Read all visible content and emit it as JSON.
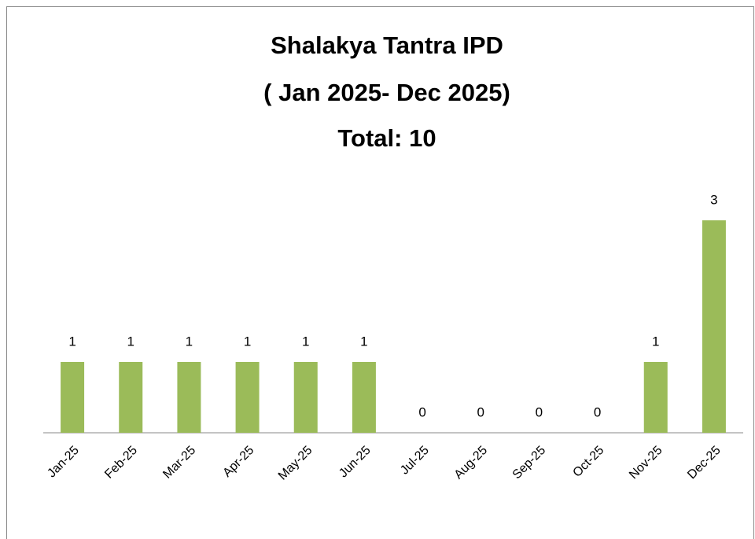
{
  "chart_data": {
    "type": "bar",
    "title": "Shalakya Tantra IPD",
    "subtitle": "( Jan 2025- Dec 2025)",
    "annotation": "Total: 10",
    "categories": [
      "Jan-25",
      "Feb-25",
      "Mar-25",
      "Apr-25",
      "May-25",
      "Jun-25",
      "Jul-25",
      "Aug-25",
      "Sep-25",
      "Oct-25",
      "Nov-25",
      "Dec-25"
    ],
    "values": [
      1,
      1,
      1,
      1,
      1,
      1,
      0,
      0,
      0,
      0,
      1,
      3
    ],
    "color": "#9bbb59",
    "ylim": [
      0,
      3.5
    ]
  }
}
